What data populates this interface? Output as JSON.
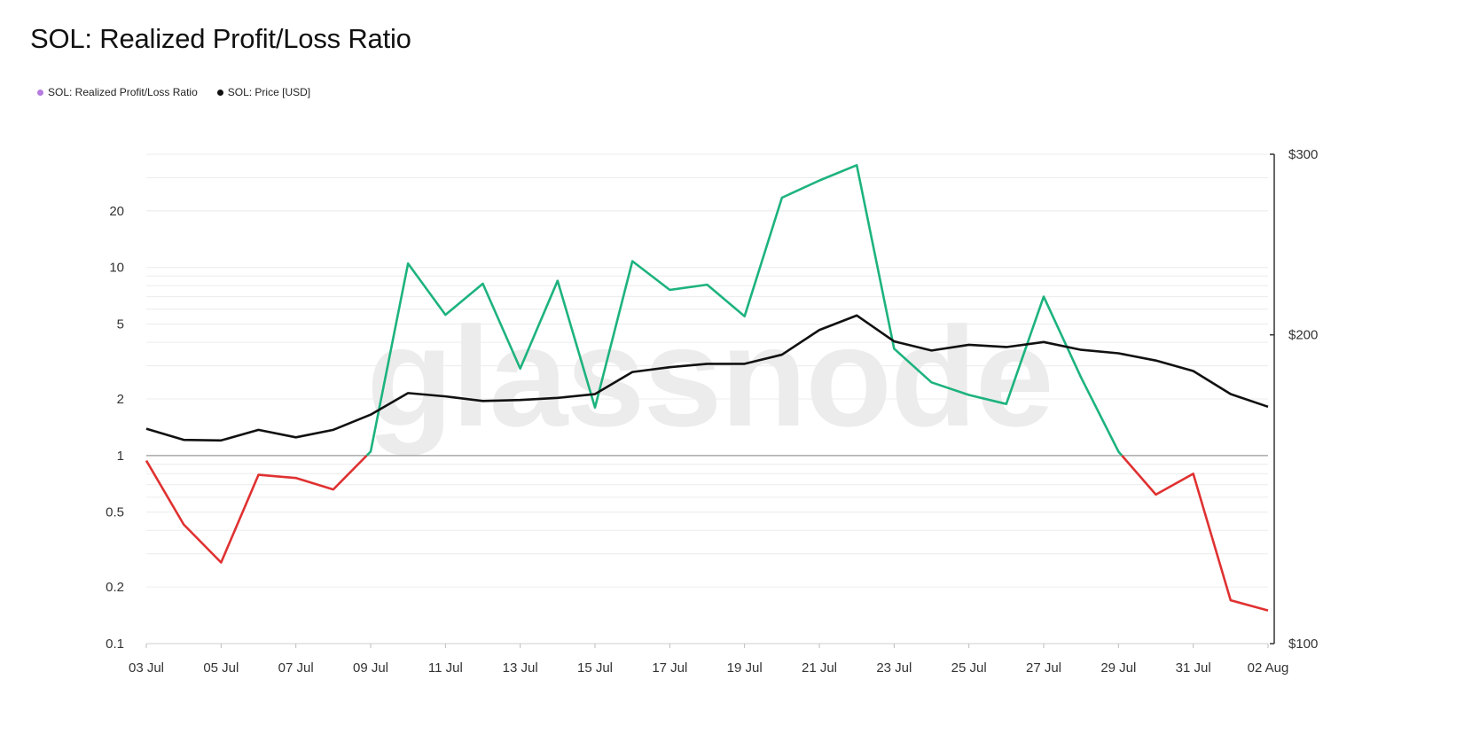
{
  "title": "SOL: Realized Profit/Loss Ratio",
  "watermark": "glassnode",
  "legend": [
    {
      "label": "SOL: Realized Profit/Loss Ratio",
      "color": "#b57be0"
    },
    {
      "label": "SOL: Price [USD]",
      "color": "#111111"
    }
  ],
  "chart_data": {
    "type": "line",
    "title": "SOL: Realized Profit/Loss Ratio",
    "x_tick_labels": [
      "03 Jul",
      "05 Jul",
      "07 Jul",
      "09 Jul",
      "11 Jul",
      "13 Jul",
      "15 Jul",
      "17 Jul",
      "19 Jul",
      "21 Jul",
      "23 Jul",
      "25 Jul",
      "27 Jul",
      "29 Jul",
      "31 Jul",
      "02 Aug"
    ],
    "x": [
      "03 Jul",
      "04 Jul",
      "05 Jul",
      "06 Jul",
      "07 Jul",
      "08 Jul",
      "09 Jul",
      "10 Jul",
      "11 Jul",
      "12 Jul",
      "13 Jul",
      "14 Jul",
      "15 Jul",
      "16 Jul",
      "17 Jul",
      "18 Jul",
      "19 Jul",
      "20 Jul",
      "21 Jul",
      "22 Jul",
      "23 Jul",
      "24 Jul",
      "25 Jul",
      "26 Jul",
      "27 Jul",
      "28 Jul",
      "29 Jul",
      "30 Jul",
      "31 Jul",
      "01 Aug",
      "02 Aug"
    ],
    "left_axis": {
      "scale": "log",
      "range": [
        0.1,
        40
      ],
      "ticks": [
        0.1,
        0.2,
        0.5,
        1,
        2,
        5,
        10,
        20
      ],
      "tick_labels": [
        "0.1",
        "0.2",
        "0.5",
        "1",
        "2",
        "5",
        "10",
        "20"
      ]
    },
    "right_axis": {
      "scale": "log",
      "range": [
        100,
        300
      ],
      "ticks": [
        100,
        200,
        300
      ],
      "tick_labels": [
        "$100",
        "$200",
        "$300"
      ]
    },
    "reference_line": 1,
    "colors": {
      "above_one": "#1db37e",
      "below_one": "#e03131",
      "price": "#111111",
      "grid": "#ececec",
      "axis": "#333333",
      "reference": "#9a9a9a"
    },
    "series": [
      {
        "name": "SOL: Realized Profit/Loss Ratio",
        "axis": "left",
        "values": [
          0.94,
          0.43,
          0.27,
          0.79,
          0.76,
          0.66,
          1.05,
          10.5,
          5.6,
          8.2,
          2.9,
          8.5,
          1.8,
          10.8,
          7.6,
          8.1,
          5.5,
          23.5,
          29.0,
          35.0,
          3.7,
          2.45,
          2.1,
          1.88,
          7.0,
          2.6,
          1.05,
          0.62,
          0.8,
          0.17,
          0.15
        ]
      },
      {
        "name": "SOL: Price [USD]",
        "axis": "right",
        "values": [
          162,
          158,
          157.8,
          161.6,
          158.9,
          161.6,
          167.2,
          175.5,
          174.2,
          172.4,
          172.8,
          173.6,
          175.1,
          184,
          186,
          187.4,
          187.4,
          191.3,
          202.2,
          208.9,
          197.1,
          193.1,
          195.6,
          194.6,
          196.8,
          193.4,
          191.9,
          188.8,
          184.4,
          175.1,
          170.2
        ]
      }
    ]
  }
}
